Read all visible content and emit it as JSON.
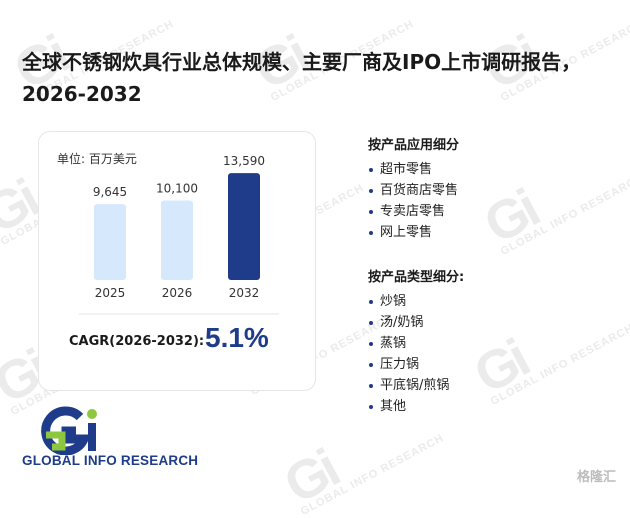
{
  "title": "全球不锈钢炊具行业总体规模、主要厂商及IPO上市调研报告，2026-2032",
  "unit_label": "单位: 百万美元",
  "chart_data": {
    "type": "bar",
    "categories": [
      "2025",
      "2026",
      "2032"
    ],
    "values": [
      9645,
      10100,
      13590
    ],
    "value_labels": [
      "9,645",
      "10,100",
      "13,590"
    ],
    "colors": [
      "#d6e8fb",
      "#d6e8fb",
      "#1f3c8a"
    ],
    "ylim": [
      0,
      15000
    ],
    "grid": false,
    "title": "",
    "xlabel": "",
    "ylabel": ""
  },
  "cagr": {
    "label": "CAGR(2026-2032):",
    "value": "5.1%"
  },
  "segments_application": {
    "title": "按产品应用细分",
    "items": [
      "超市零售",
      "百货商店零售",
      "专卖店零售",
      "网上零售"
    ]
  },
  "segments_type": {
    "title": "按产品类型细分:",
    "items": [
      "炒锅",
      "汤/奶锅",
      "蒸锅",
      "压力锅",
      "平底锅/煎锅",
      "其他"
    ]
  },
  "logo": {
    "text": "GLOBAL INFO RESEARCH"
  },
  "watermark": {
    "mark": "Gi",
    "text": "GLOBAL INFO RESEARCH"
  },
  "footer_mark": "格隆汇",
  "colors": {
    "brand_blue": "#1f3c8a",
    "brand_green": "#8dc63f",
    "bar_light": "#d6e8fb"
  }
}
